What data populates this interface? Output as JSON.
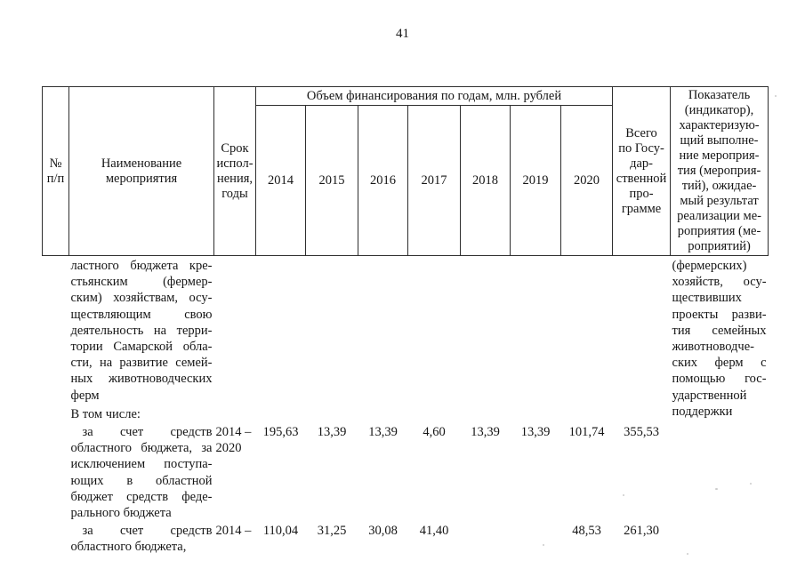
{
  "page": {
    "number": "41"
  },
  "table": {
    "header": {
      "num": "№\nп/п",
      "name": "Наименование\nмероприятия",
      "term": "Срок\nиспол-\nнения,\nгоды",
      "finance_span": "Объем финансирования по годам, млн. рублей",
      "years": [
        "2014",
        "2015",
        "2016",
        "2017",
        "2018",
        "2019",
        "2020"
      ],
      "total": "Всего\nпо Госу-\nдар-\nственной\nпро-\nграмме",
      "indicator": "Показатель\n(индикатор),\nхарактеризую-\nщий выполне-\nние мероприя-\nтия (мероприя-\nтий), ожидае-\nмый результат\nреализации ме-\nроприятия (ме-\nроприятий)"
    },
    "rows": [
      {
        "name": "ластного бюджета кре-\nстьянским (фермер-\nским) хозяйствам, осу-\nществляющим свою\nдеятельность на терри-\nтории Самарской обла-\nсти, на развитие семей-\nных животноводческих\nферм",
        "note": "В том числе:",
        "term": "",
        "values": [
          "",
          "",
          "",
          "",
          "",
          "",
          ""
        ],
        "total": "",
        "indicator": "(фермерских)\nхозяйств, осу-\nществивших\nпроекты разви-\nтия семейных\nживотноводче-\nских ферм с\nпомощью гос-\nударственной\nподдержки"
      },
      {
        "name": "за счет средств\nобластного бюджета, за\nисключением поступа-\nющих в областной\nбюджет средств феде-\nрального бюджета",
        "note": "",
        "term": "2014 –\n2020",
        "values": [
          "195,63",
          "13,39",
          "13,39",
          "4,60",
          "13,39",
          "13,39",
          "101,74"
        ],
        "total": "355,53",
        "indicator": ""
      },
      {
        "name": "за счет средств\nобластного бюджета,",
        "note": "",
        "term": "2014 –",
        "values": [
          "110,04",
          "31,25",
          "30,08",
          "41,40",
          "",
          "",
          "48,53"
        ],
        "total": "261,30",
        "indicator": ""
      }
    ]
  }
}
